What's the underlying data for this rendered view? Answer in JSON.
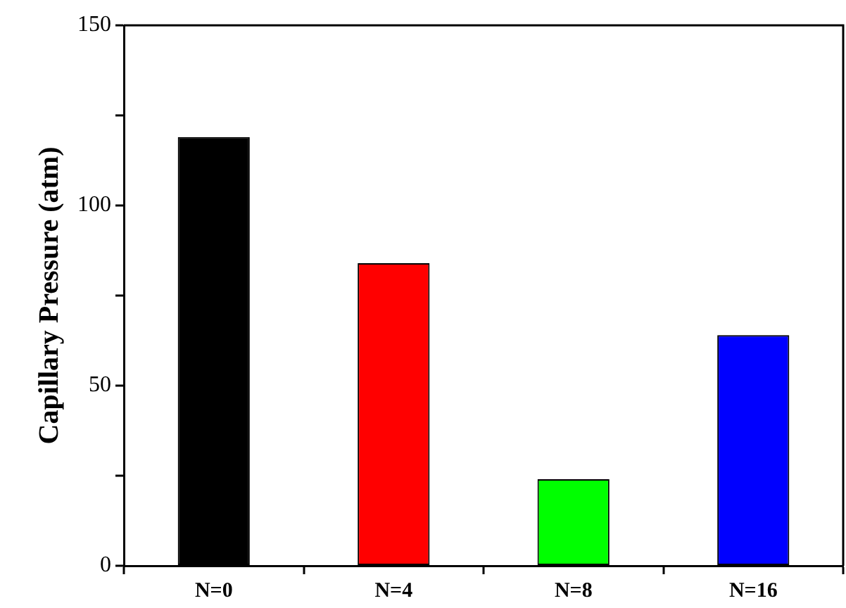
{
  "chart_data": {
    "type": "bar",
    "ylabel": "Capillary Pressure (atm)",
    "categories": [
      "N=0",
      "N=4",
      "N=8",
      "N=16"
    ],
    "values": [
      119,
      84,
      24,
      64
    ],
    "colors": [
      "#000000",
      "#ff0000",
      "#00ff00",
      "#0000ff"
    ],
    "ylim": [
      0,
      150
    ],
    "yticks": [
      0,
      {
        "value": 25,
        "label": null
      },
      50,
      {
        "value": 75,
        "label": null
      },
      100,
      {
        "value": 125,
        "label": null
      },
      150
    ],
    "grid": false,
    "legend": false
  }
}
